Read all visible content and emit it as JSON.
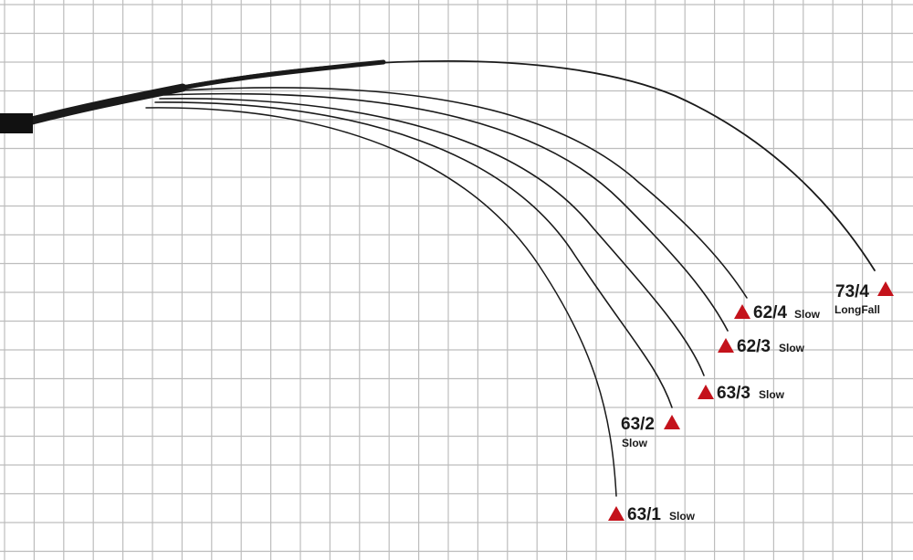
{
  "rods": [
    {
      "model": "73/4",
      "action": "LongFall"
    },
    {
      "model": "62/4",
      "action": "Slow"
    },
    {
      "model": "62/3",
      "action": "Slow"
    },
    {
      "model": "63/3",
      "action": "Slow"
    },
    {
      "model": "63/2",
      "action": "Slow"
    },
    {
      "model": "63/1",
      "action": "Slow"
    }
  ]
}
